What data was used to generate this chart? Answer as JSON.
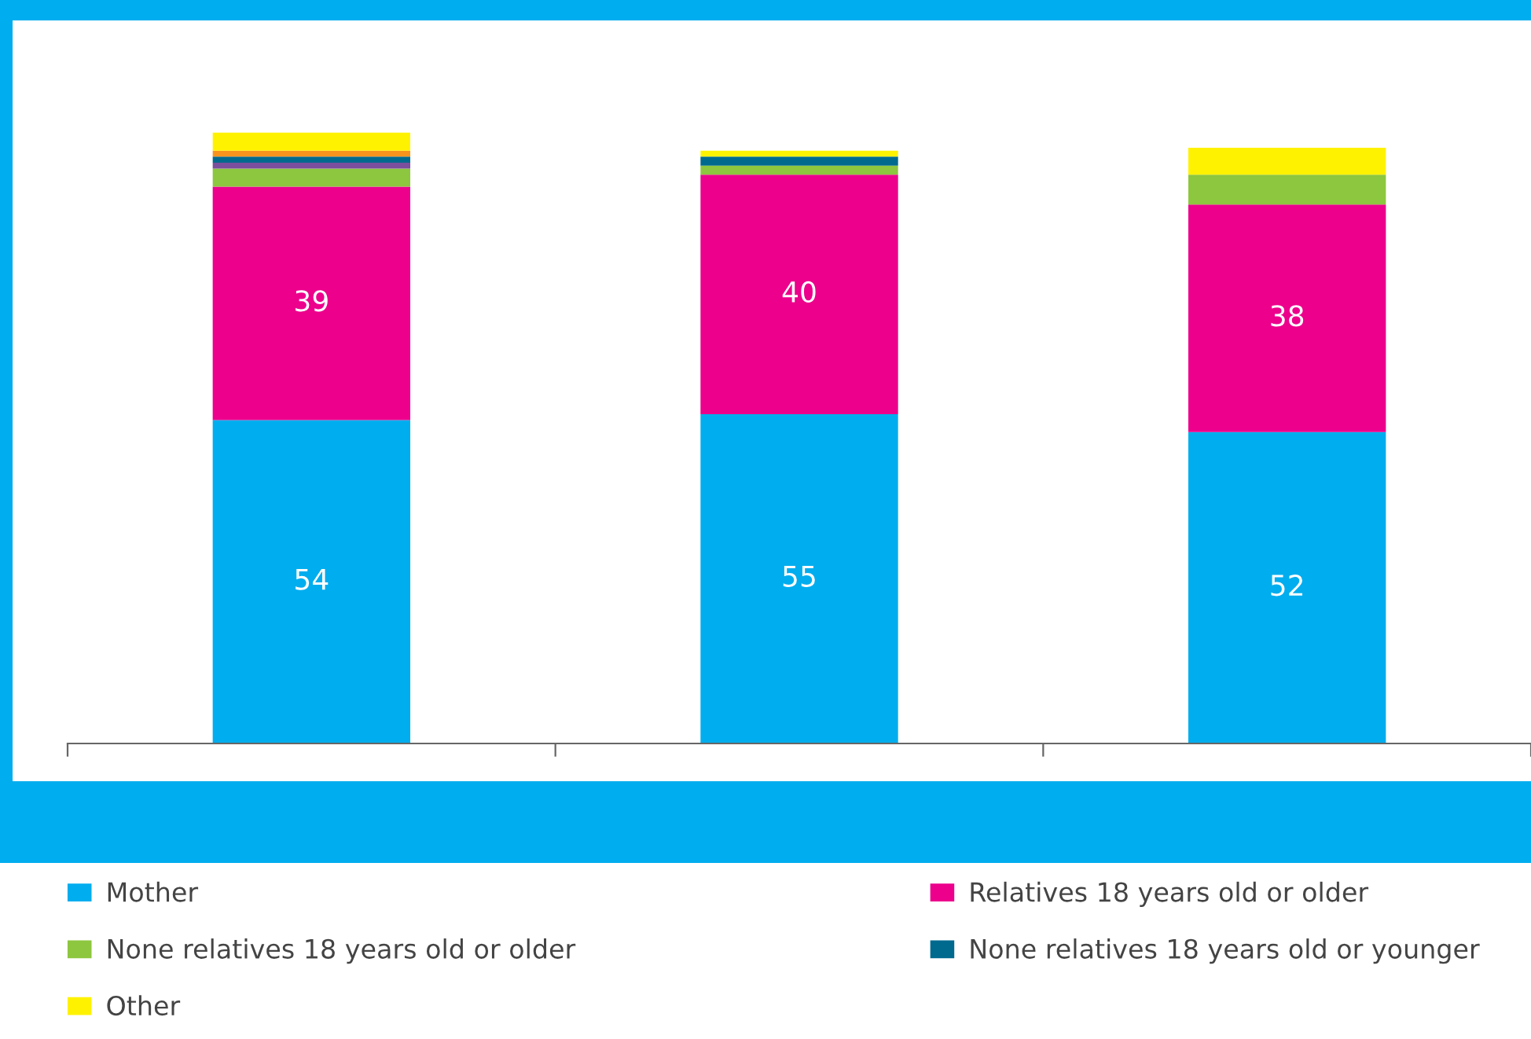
{
  "chart_data": {
    "type": "bar",
    "stacked": true,
    "categories": [
      null,
      null,
      null
    ],
    "series": [
      {
        "name": "Mother",
        "color": "#00adee",
        "values": [
          54,
          55,
          52
        ],
        "value_labels": [
          "54",
          "55",
          "52"
        ]
      },
      {
        "name": "Relatives 18 years old or older",
        "color": "#ec008c",
        "values": [
          39,
          40,
          38
        ],
        "value_labels": [
          "39",
          "40",
          "38"
        ]
      },
      {
        "name": "None relatives 18 years old or older",
        "color": "#8dc63f",
        "values": [
          3,
          1.5,
          5
        ]
      },
      {
        "color": "#7b4f9d",
        "values": [
          1,
          0,
          0
        ]
      },
      {
        "name": "None relatives 18 years old or younger",
        "color": "#006a8e",
        "values": [
          1,
          1.5,
          0
        ]
      },
      {
        "color": "#f7941d",
        "values": [
          1,
          0,
          0
        ]
      },
      {
        "name": "Other",
        "color": "#fff200",
        "values": [
          3,
          1,
          4.5
        ]
      }
    ],
    "grid": false,
    "legend": "bottom"
  }
}
